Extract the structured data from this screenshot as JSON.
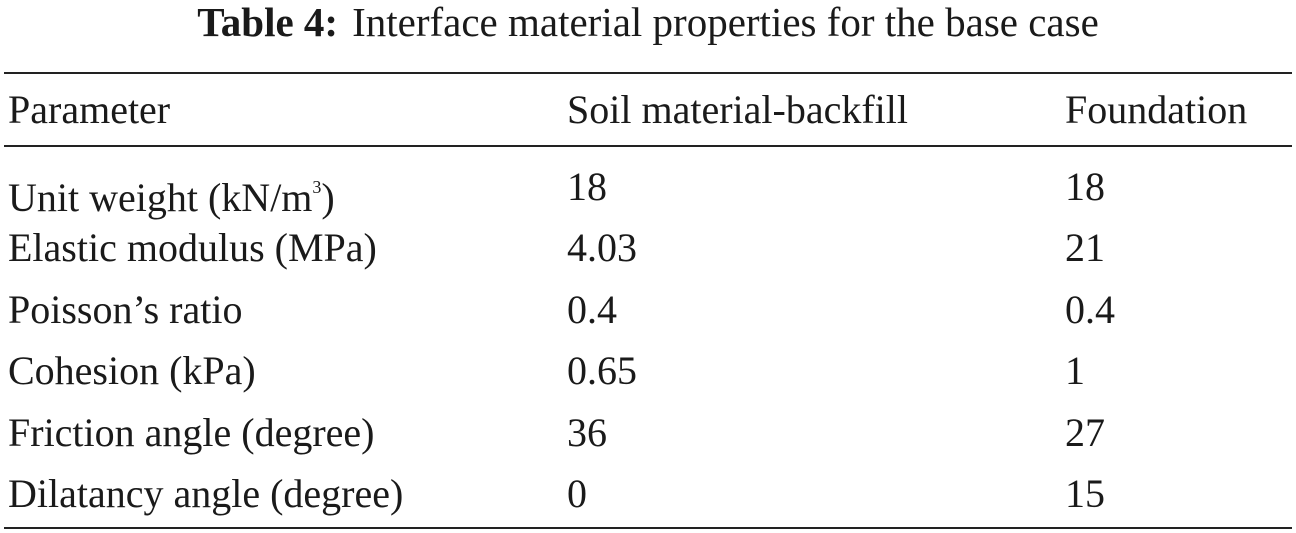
{
  "caption": {
    "label": "Table 4:",
    "text": "Interface material properties for the base case"
  },
  "table": {
    "header": [
      "Parameter",
      "Soil material-backfill",
      "Foundation"
    ],
    "rows": [
      [
        {
          "text": "Unit weight (kN/m",
          "sup": "3",
          "end": ")"
        },
        "18",
        "18"
      ],
      [
        "Elastic modulus (MPa)",
        "4.03",
        "21"
      ],
      [
        "Poisson’s ratio",
        "0.4",
        "0.4"
      ],
      [
        "Cohesion (kPa)",
        "0.65",
        "1"
      ],
      [
        "Friction angle (degree)",
        "36",
        "27"
      ],
      [
        "Dilatancy angle (degree)",
        "0",
        "15"
      ]
    ]
  }
}
